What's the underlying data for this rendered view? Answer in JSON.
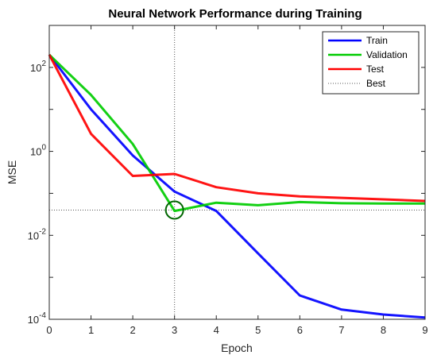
{
  "chart_data": {
    "type": "line",
    "title": "Neural Network Performance during Training",
    "xlabel": "Epoch",
    "ylabel": "MSE",
    "xlim": [
      0,
      9
    ],
    "ylim_log10": [
      -4,
      3
    ],
    "y_scale": "log",
    "x_ticks": [
      "0",
      "1",
      "2",
      "3",
      "4",
      "5",
      "6",
      "7",
      "8",
      "9"
    ],
    "y_ticks": [
      {
        "base": "10",
        "exp": "-4",
        "value": 0.0001
      },
      {
        "base": "10",
        "exp": "-2",
        "value": 0.01
      },
      {
        "base": "10",
        "exp": "0",
        "value": 1
      },
      {
        "base": "10",
        "exp": "2",
        "value": 100
      }
    ],
    "x": [
      0,
      1,
      2,
      3,
      4,
      5,
      6,
      7,
      8,
      9
    ],
    "series": [
      {
        "name": "Train",
        "color": "#0000ff",
        "values": [
          200,
          10,
          0.8,
          0.11,
          0.038,
          0.0037,
          0.00037,
          0.00017,
          0.00013,
          0.00011
        ]
      },
      {
        "name": "Validation",
        "color": "#00cc00",
        "values": [
          200,
          22,
          1.5,
          0.038,
          0.06,
          0.052,
          0.062,
          0.058,
          0.057,
          0.057
        ]
      },
      {
        "name": "Test",
        "color": "#ff0000",
        "values": [
          200,
          2.6,
          0.26,
          0.29,
          0.14,
          0.1,
          0.085,
          0.078,
          0.072,
          0.066
        ]
      }
    ],
    "best": {
      "label": "Best",
      "epoch": 3,
      "value": 0.04,
      "color": "#006600"
    },
    "legend_position": "top-right",
    "grid": false
  }
}
